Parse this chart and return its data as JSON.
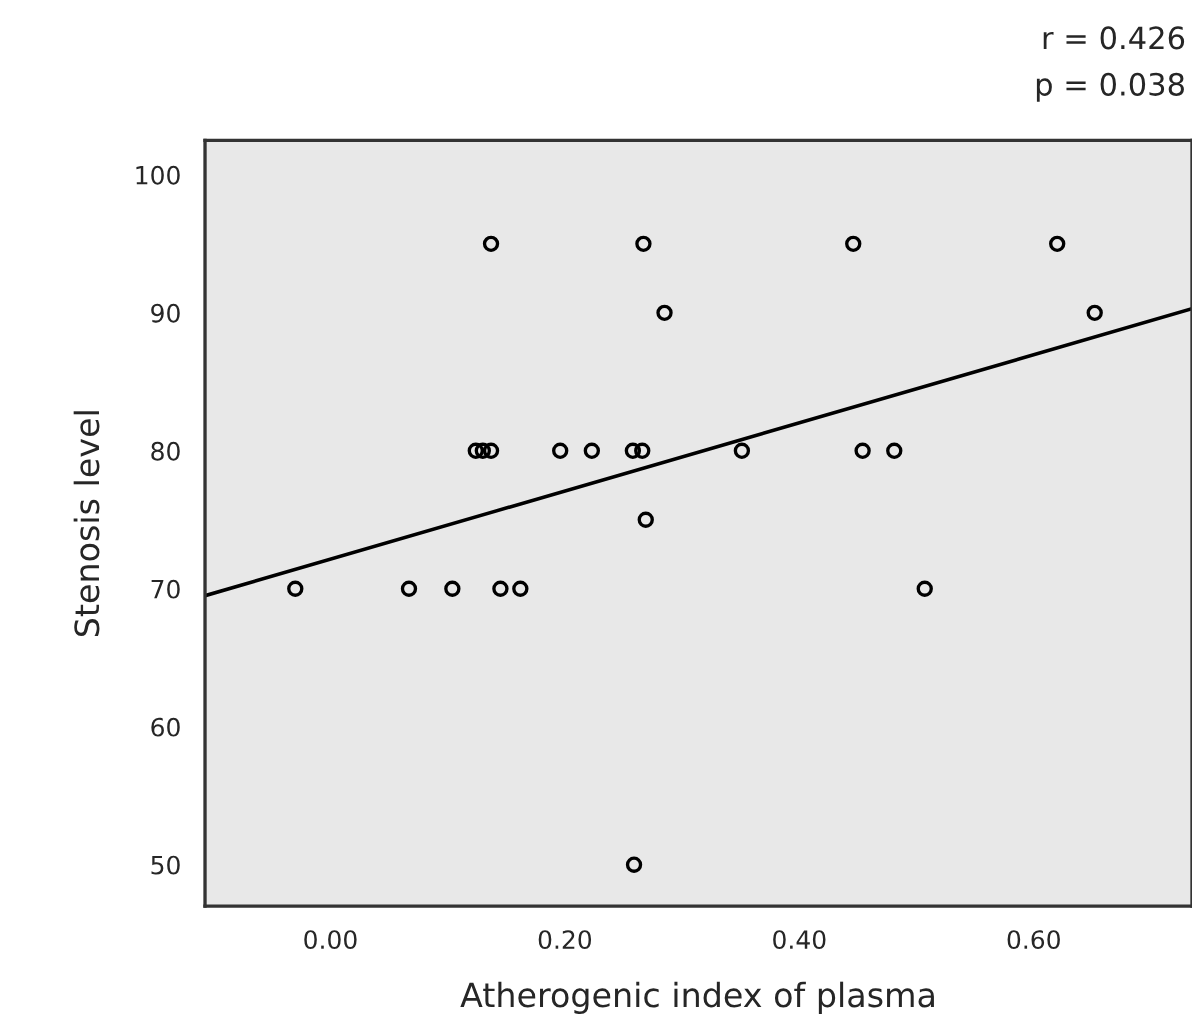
{
  "chart_data": {
    "type": "scatter",
    "xlabel": "Atherogenic index of plasma",
    "ylabel": "Stenosis level",
    "annotations": [
      "r = 0.426",
      "p = 0.038"
    ],
    "xlim": [
      -0.107,
      0.735
    ],
    "ylim": [
      47,
      102.5
    ],
    "xticks": [
      {
        "value": 0,
        "label": "0.00"
      },
      {
        "value": 0.2,
        "label": "0.20"
      },
      {
        "value": 0.4,
        "label": "0.40"
      },
      {
        "value": 0.6,
        "label": "0.60"
      }
    ],
    "yticks": [
      50,
      60,
      70,
      80,
      90,
      100
    ],
    "grid": false,
    "legend": false,
    "marker": "circle",
    "series": [
      {
        "color": "#000000",
        "x": [
          -0.03,
          0.067,
          0.104,
          0.145,
          0.162,
          0.124,
          0.13,
          0.137,
          0.196,
          0.223,
          0.258,
          0.262,
          0.266,
          0.137,
          0.267,
          0.285,
          0.269,
          0.259,
          0.446,
          0.62,
          0.652,
          0.351,
          0.454,
          0.481,
          0.507
        ],
        "values": [
          70,
          70,
          70,
          70,
          70,
          80,
          80,
          80,
          80,
          80,
          80,
          null,
          80,
          95,
          95,
          90,
          75,
          50,
          95,
          95,
          90,
          80,
          80,
          80,
          70
        ]
      },
      {
        "type": "line",
        "color": "#000000",
        "x": [
          -0.107,
          0.735
        ],
        "values": [
          69.5,
          90.3
        ],
        "marker": "none",
        "line_style": "solid"
      }
    ]
  }
}
